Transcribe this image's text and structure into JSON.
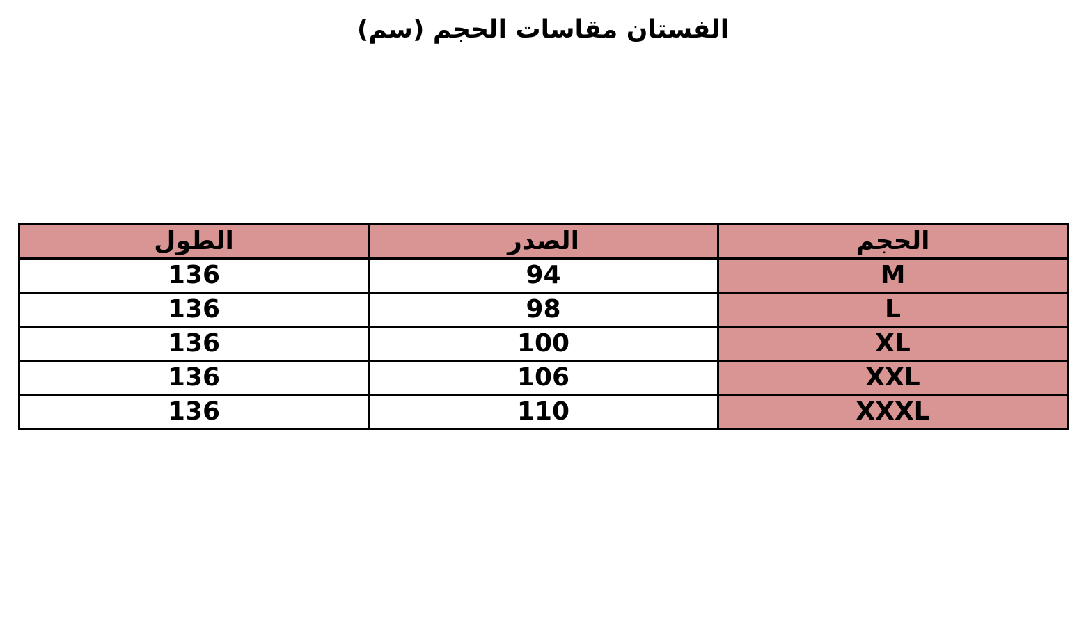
{
  "title": "الفستان مقاسات الحجم (سم)",
  "highlight_color": "#d99594",
  "table": {
    "headers": [
      "الحجم",
      "الصدر",
      "الطول"
    ],
    "rows": [
      [
        "M",
        "94",
        "136"
      ],
      [
        "L",
        "98",
        "136"
      ],
      [
        "XL",
        "100",
        "136"
      ],
      [
        "XXL",
        "106",
        "136"
      ],
      [
        "XXXL",
        "110",
        "136"
      ]
    ]
  }
}
